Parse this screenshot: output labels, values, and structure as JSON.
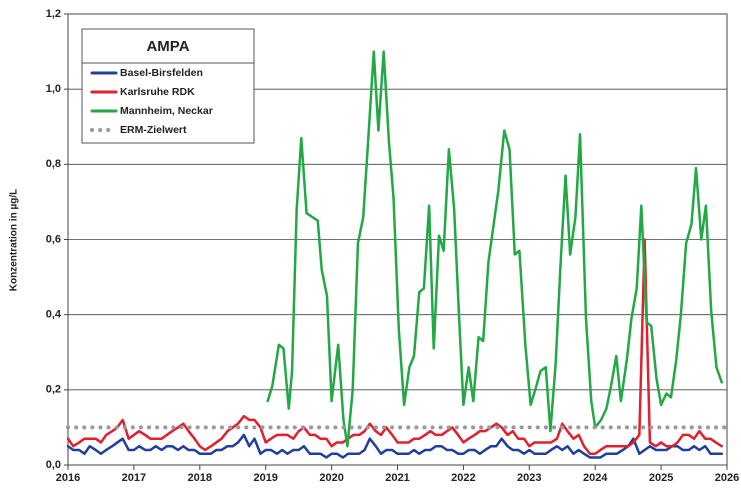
{
  "chart_data": {
    "type": "line",
    "title": "AMPA",
    "y_label": "Konzentration in µg/L",
    "xlim": [
      2016,
      2026
    ],
    "xticks": [
      2016,
      2017,
      2018,
      2019,
      2020,
      2021,
      2022,
      2023,
      2024,
      2025,
      2026
    ],
    "ylim": [
      0,
      1.2
    ],
    "yticks": [
      {
        "value": 0,
        "label": "0,0"
      },
      {
        "value": 0.2,
        "label": "0,2"
      },
      {
        "value": 0.4,
        "label": "0,4"
      },
      {
        "value": 0.6,
        "label": "0,6"
      },
      {
        "value": 0.8,
        "label": "0,8"
      },
      {
        "value": 1.0,
        "label": "1,0"
      },
      {
        "value": 1.2,
        "label": "1,2"
      }
    ],
    "grid": true,
    "legend": "upper left",
    "series": [
      {
        "name": "Basel-Birsfelden",
        "color": "#1f3f99",
        "line_style": "solid",
        "x": [
          2016,
          2016.08,
          2016.17,
          2016.25,
          2016.33,
          2016.42,
          2016.5,
          2016.58,
          2016.67,
          2016.75,
          2016.83,
          2016.92,
          2017,
          2017.08,
          2017.17,
          2017.25,
          2017.33,
          2017.42,
          2017.5,
          2017.58,
          2017.67,
          2017.75,
          2017.83,
          2017.92,
          2018,
          2018.08,
          2018.17,
          2018.25,
          2018.33,
          2018.42,
          2018.5,
          2018.58,
          2018.67,
          2018.75,
          2018.83,
          2018.92,
          2019,
          2019.08,
          2019.17,
          2019.25,
          2019.33,
          2019.42,
          2019.5,
          2019.58,
          2019.67,
          2019.75,
          2019.83,
          2019.92,
          2020,
          2020.08,
          2020.17,
          2020.25,
          2020.33,
          2020.42,
          2020.5,
          2020.58,
          2020.67,
          2020.75,
          2020.83,
          2020.92,
          2021,
          2021.08,
          2021.17,
          2021.25,
          2021.33,
          2021.42,
          2021.5,
          2021.58,
          2021.67,
          2021.75,
          2021.83,
          2021.92,
          2022,
          2022.08,
          2022.17,
          2022.25,
          2022.33,
          2022.42,
          2022.5,
          2022.58,
          2022.67,
          2022.75,
          2022.83,
          2022.92,
          2023,
          2023.08,
          2023.17,
          2023.25,
          2023.33,
          2023.42,
          2023.5,
          2023.58,
          2023.67,
          2023.75,
          2023.83,
          2023.92,
          2024,
          2024.08,
          2024.17,
          2024.25,
          2024.33,
          2024.42,
          2024.5,
          2024.58,
          2024.67,
          2024.75,
          2024.83,
          2024.92,
          2025,
          2025.08,
          2025.17,
          2025.25,
          2025.33,
          2025.42,
          2025.5,
          2025.58,
          2025.67,
          2025.75,
          2025.83,
          2025.92
        ],
        "values": [
          0.05,
          0.04,
          0.04,
          0.03,
          0.05,
          0.04,
          0.03,
          0.04,
          0.05,
          0.06,
          0.07,
          0.04,
          0.04,
          0.05,
          0.04,
          0.04,
          0.05,
          0.04,
          0.05,
          0.05,
          0.04,
          0.05,
          0.04,
          0.04,
          0.03,
          0.03,
          0.03,
          0.04,
          0.04,
          0.05,
          0.05,
          0.06,
          0.08,
          0.05,
          0.07,
          0.03,
          0.04,
          0.04,
          0.03,
          0.04,
          0.03,
          0.04,
          0.04,
          0.05,
          0.03,
          0.03,
          0.03,
          0.02,
          0.03,
          0.03,
          0.02,
          0.03,
          0.03,
          0.03,
          0.04,
          0.07,
          0.05,
          0.03,
          0.04,
          0.04,
          0.03,
          0.03,
          0.03,
          0.04,
          0.03,
          0.04,
          0.04,
          0.05,
          0.05,
          0.04,
          0.04,
          0.03,
          0.03,
          0.04,
          0.04,
          0.03,
          0.04,
          0.05,
          0.05,
          0.07,
          0.05,
          0.04,
          0.04,
          0.03,
          0.04,
          0.03,
          0.03,
          0.03,
          0.04,
          0.05,
          0.04,
          0.05,
          0.03,
          0.04,
          0.03,
          0.02,
          0.02,
          0.02,
          0.03,
          0.03,
          0.03,
          0.04,
          0.05,
          0.07,
          0.03,
          0.04,
          0.05,
          0.04,
          0.04,
          0.04,
          0.05,
          0.05,
          0.04,
          0.04,
          0.05,
          0.04,
          0.05,
          0.03,
          0.03,
          0.03
        ]
      },
      {
        "name": "Karlsruhe RDK",
        "color": "#e0202e",
        "line_style": "solid",
        "x": [
          2016,
          2016.08,
          2016.17,
          2016.25,
          2016.33,
          2016.42,
          2016.5,
          2016.58,
          2016.67,
          2016.75,
          2016.83,
          2016.92,
          2017,
          2017.08,
          2017.17,
          2017.25,
          2017.33,
          2017.42,
          2017.5,
          2017.58,
          2017.67,
          2017.75,
          2017.83,
          2017.92,
          2018,
          2018.08,
          2018.17,
          2018.25,
          2018.33,
          2018.42,
          2018.5,
          2018.58,
          2018.67,
          2018.75,
          2018.83,
          2018.92,
          2019,
          2019.08,
          2019.17,
          2019.25,
          2019.33,
          2019.42,
          2019.5,
          2019.58,
          2019.67,
          2019.75,
          2019.83,
          2019.92,
          2020,
          2020.08,
          2020.17,
          2020.25,
          2020.33,
          2020.42,
          2020.5,
          2020.58,
          2020.67,
          2020.75,
          2020.83,
          2020.92,
          2021,
          2021.08,
          2021.17,
          2021.25,
          2021.33,
          2021.42,
          2021.5,
          2021.58,
          2021.67,
          2021.75,
          2021.83,
          2021.92,
          2022,
          2022.08,
          2022.17,
          2022.25,
          2022.33,
          2022.42,
          2022.5,
          2022.58,
          2022.67,
          2022.75,
          2022.83,
          2022.92,
          2023,
          2023.08,
          2023.17,
          2023.25,
          2023.33,
          2023.42,
          2023.5,
          2023.58,
          2023.67,
          2023.75,
          2023.83,
          2023.92,
          2024,
          2024.08,
          2024.17,
          2024.25,
          2024.33,
          2024.42,
          2024.5,
          2024.58,
          2024.67,
          2024.75,
          2024.83,
          2024.92,
          2025,
          2025.08,
          2025.17,
          2025.25,
          2025.33,
          2025.42,
          2025.5,
          2025.58,
          2025.67,
          2025.75,
          2025.83,
          2025.92
        ],
        "values": [
          0.07,
          0.05,
          0.06,
          0.07,
          0.07,
          0.07,
          0.06,
          0.08,
          0.09,
          0.1,
          0.12,
          0.07,
          0.08,
          0.09,
          0.08,
          0.07,
          0.07,
          0.07,
          0.08,
          0.09,
          0.1,
          0.11,
          0.09,
          0.07,
          0.05,
          0.04,
          0.05,
          0.06,
          0.07,
          0.09,
          0.1,
          0.11,
          0.13,
          0.12,
          0.12,
          0.1,
          0.06,
          0.07,
          0.08,
          0.08,
          0.08,
          0.07,
          0.09,
          0.1,
          0.08,
          0.08,
          0.07,
          0.07,
          0.05,
          0.06,
          0.06,
          0.07,
          0.08,
          0.08,
          0.09,
          0.11,
          0.09,
          0.08,
          0.1,
          0.08,
          0.06,
          0.06,
          0.06,
          0.07,
          0.07,
          0.08,
          0.09,
          0.08,
          0.08,
          0.09,
          0.1,
          0.08,
          0.06,
          0.07,
          0.08,
          0.09,
          0.09,
          0.1,
          0.11,
          0.1,
          0.08,
          0.09,
          0.07,
          0.07,
          0.05,
          0.06,
          0.06,
          0.06,
          0.06,
          0.07,
          0.11,
          0.09,
          0.07,
          0.08,
          0.05,
          0.03,
          0.03,
          0.04,
          0.05,
          0.05,
          0.05,
          0.05,
          0.05,
          0.06,
          0.08,
          0.6,
          0.06,
          0.05,
          0.06,
          0.05,
          0.05,
          0.06,
          0.08,
          0.08,
          0.07,
          0.09,
          0.07,
          0.07,
          0.06,
          0.05
        ]
      },
      {
        "name": "Mannheim, Neckar",
        "color": "#22a845",
        "line_style": "solid",
        "x": [
          2019.03,
          2019.1,
          2019.2,
          2019.27,
          2019.35,
          2019.4,
          2019.47,
          2019.54,
          2019.62,
          2019.79,
          2019.85,
          2019.93,
          2020,
          2020.1,
          2020.18,
          2020.24,
          2020.32,
          2020.4,
          2020.48,
          2020.55,
          2020.64,
          2020.71,
          2020.79,
          2020.87,
          2020.94,
          2021.02,
          2021.1,
          2021.18,
          2021.25,
          2021.33,
          2021.4,
          2021.48,
          2021.55,
          2021.63,
          2021.7,
          2021.78,
          2021.86,
          2021.93,
          2022,
          2022.08,
          2022.15,
          2022.23,
          2022.3,
          2022.38,
          2022.53,
          2022.62,
          2022.7,
          2022.78,
          2022.85,
          2022.94,
          2023.02,
          2023.09,
          2023.17,
          2023.25,
          2023.32,
          2023.4,
          2023.47,
          2023.55,
          2023.62,
          2023.7,
          2023.77,
          2023.86,
          2023.94,
          2024,
          2024.09,
          2024.17,
          2024.24,
          2024.32,
          2024.39,
          2024.48,
          2024.55,
          2024.63,
          2024.7,
          2024.78,
          2024.85,
          2024.93,
          2025,
          2025.08,
          2025.15,
          2025.23,
          2025.3,
          2025.38,
          2025.46,
          2025.53,
          2025.61,
          2025.68,
          2025.76,
          2025.84,
          2025.92
        ],
        "values": [
          0.17,
          0.21,
          0.32,
          0.31,
          0.15,
          0.25,
          0.68,
          0.87,
          0.67,
          0.65,
          0.52,
          0.45,
          0.17,
          0.32,
          0.12,
          0.05,
          0.2,
          0.59,
          0.66,
          0.85,
          1.1,
          0.89,
          1.1,
          0.86,
          0.71,
          0.36,
          0.16,
          0.26,
          0.29,
          0.46,
          0.47,
          0.69,
          0.31,
          0.61,
          0.57,
          0.84,
          0.68,
          0.41,
          0.16,
          0.26,
          0.17,
          0.34,
          0.33,
          0.54,
          0.73,
          0.89,
          0.84,
          0.56,
          0.57,
          0.32,
          0.16,
          0.2,
          0.25,
          0.26,
          0.09,
          0.27,
          0.52,
          0.77,
          0.56,
          0.66,
          0.88,
          0.39,
          0.17,
          0.1,
          0.12,
          0.15,
          0.21,
          0.29,
          0.17,
          0.28,
          0.39,
          0.47,
          0.69,
          0.38,
          0.37,
          0.23,
          0.16,
          0.19,
          0.18,
          0.28,
          0.4,
          0.59,
          0.64,
          0.79,
          0.6,
          0.69,
          0.41,
          0.26,
          0.22
        ]
      },
      {
        "name": "ERM-Zielwert",
        "color": "#999999",
        "line_style": "dotted",
        "x": [
          2016,
          2026
        ],
        "values": [
          0.1,
          0.1
        ]
      }
    ]
  }
}
